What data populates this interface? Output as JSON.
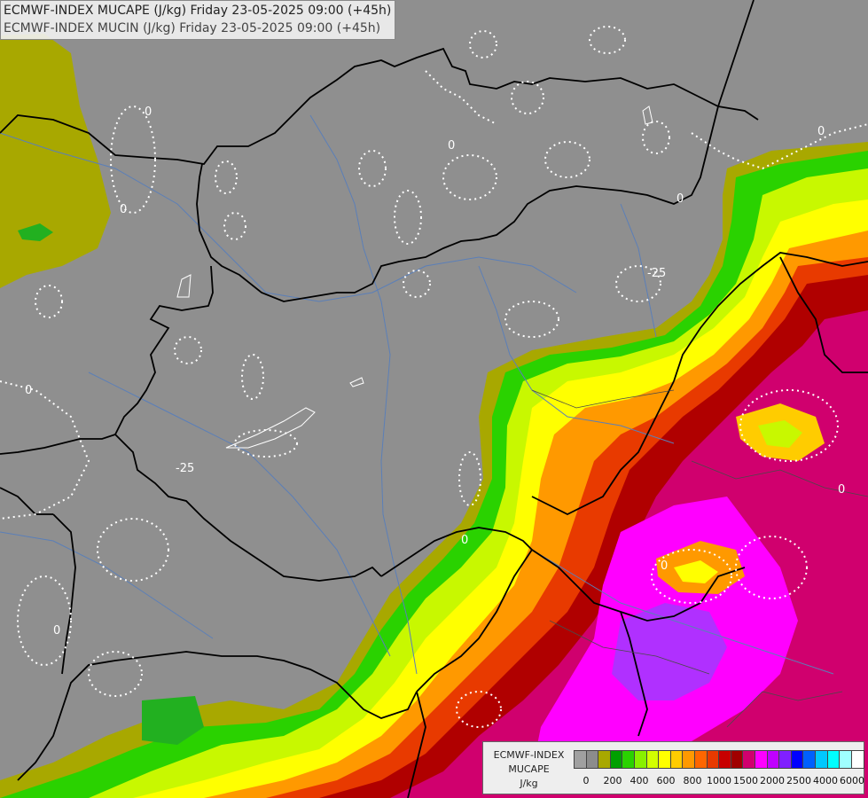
{
  "header": {
    "line1": "ECMWF-INDEX MUCAPE (J/kg) Friday 23-05-2025 09:00 (+45h)",
    "line2": "ECMWF-INDEX MUCIN (J/kg) Friday 23-05-2025 09:00 (+45h)"
  },
  "legend": {
    "title1": "ECMWF-INDEX",
    "title2": "MUCAPE",
    "unit": "J/kg",
    "colors": [
      "#a0a0a0",
      "#8c8c8c",
      "#a8a800",
      "#00a000",
      "#2ad200",
      "#88f000",
      "#d2ff00",
      "#ffff00",
      "#ffcc00",
      "#ff9900",
      "#ff6600",
      "#e83a00",
      "#c80000",
      "#a00000",
      "#d0006e",
      "#ff00ff",
      "#c000ff",
      "#8020ff",
      "#0000ff",
      "#0060ff",
      "#00c8ff",
      "#00ffff",
      "#a0ffff",
      "#ffffff"
    ],
    "ticks": [
      "0",
      "200",
      "400",
      "600",
      "800",
      "1000",
      "1500",
      "2000",
      "2500",
      "4000",
      "6000"
    ]
  },
  "map": {
    "contour_labels": [
      "0",
      "0",
      "0",
      "0",
      "0",
      "0",
      "0",
      "0",
      "-25",
      "-25",
      "0",
      "0"
    ],
    "colors": {
      "background": "#8f8f8f",
      "border": "#000000",
      "river": "#5b7fb8",
      "contour": "#ffffff"
    }
  }
}
